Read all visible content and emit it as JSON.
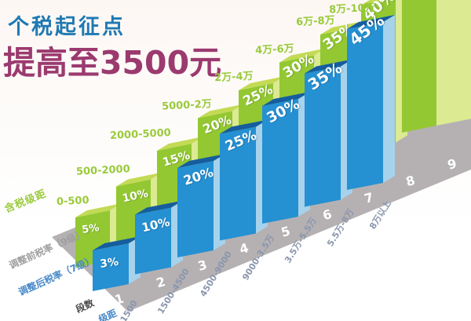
{
  "title": {
    "line1": "个税起征点",
    "line2": "提高至3500元"
  },
  "chart_data": {
    "type": "bar",
    "title": "个税起征点提高至3500元",
    "x_axis_label": "段数",
    "x_ticks": [
      "1",
      "2",
      "3",
      "4",
      "5",
      "6",
      "7",
      "8",
      "9"
    ],
    "series": [
      {
        "name": "调整前税率（9级）",
        "legend_color": "#93c832",
        "brackets": [
          "0-500",
          "500-2000",
          "2000-5000",
          "5000-2万",
          "2万-4万",
          "4万-6万",
          "6万-8万",
          "8万-10万",
          ""
        ],
        "rates": [
          "5%",
          "10%",
          "15%",
          "20%",
          "25%",
          "30%",
          "35%",
          "40%",
          ""
        ]
      },
      {
        "name": "调整后税率（7级）",
        "legend_color": "#2590d2",
        "brackets": [
          "0-1500",
          "1500-4500",
          "4500-9000",
          "9000-3.5万",
          "3.5万-5.5万",
          "5.5万-8万",
          "8万以上"
        ],
        "rates": [
          "3%",
          "10%",
          "20%",
          "25%",
          "30%",
          "35%",
          "45%"
        ]
      }
    ],
    "row_headers": {
      "bracket": "含税级距",
      "old_rate": "调整前税率（9级）",
      "new_rate": "调整后税率（7级）",
      "x": "段数",
      "new_bracket": "级距"
    }
  },
  "colors": {
    "title_line1": "#1f79b2",
    "title_line2": "#9b3a6f",
    "old_bar_front": "#93c832",
    "old_bar_side": "#dcea92",
    "old_bar_top": "#c3da55",
    "new_bar_front": "#2590d2",
    "new_bar_side": "#a6d2ec",
    "new_bar_top": "#155d9e",
    "floor": "#b5b1b2",
    "old_bracket_label": "#9aca3c",
    "new_bracket_label": "#8a96ad",
    "axis_number": "#ffffff"
  }
}
